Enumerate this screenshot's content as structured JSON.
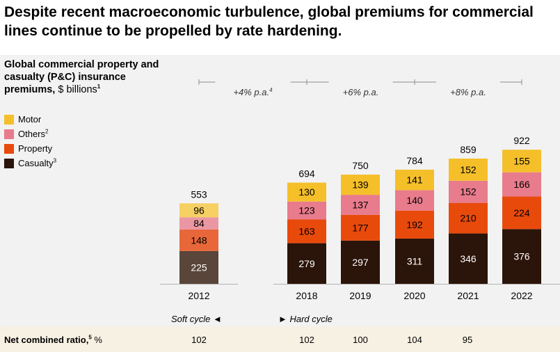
{
  "headline": "Despite recent macroeconomic turbulence, global premiums for commercial lines continue to be propelled by rate hardening.",
  "subtitle": {
    "text": "Global commercial property and casualty (P&C) insurance premiums,",
    "unit": " $ billions",
    "footnote": "1"
  },
  "legend": [
    {
      "name": "Motor",
      "footnote": "",
      "color": "#f5bf2a"
    },
    {
      "name": "Others",
      "footnote": "2",
      "color": "#e87b8c"
    },
    {
      "name": "Property",
      "footnote": "",
      "color": "#e84a0c"
    },
    {
      "name": "Casualty",
      "footnote": "3",
      "color": "#2b1409"
    }
  ],
  "chart_data": {
    "type": "bar",
    "stacked": true,
    "categories": [
      "2012",
      "2018",
      "2019",
      "2020",
      "2021",
      "2022"
    ],
    "series": [
      {
        "name": "Casualty",
        "values": [
          225,
          279,
          297,
          311,
          346,
          376
        ]
      },
      {
        "name": "Property",
        "values": [
          148,
          163,
          177,
          192,
          210,
          224
        ]
      },
      {
        "name": "Others",
        "values": [
          84,
          123,
          137,
          140,
          152,
          166
        ]
      },
      {
        "name": "Motor",
        "values": [
          96,
          130,
          139,
          141,
          152,
          155
        ]
      }
    ],
    "totals": [
      553,
      694,
      750,
      784,
      859,
      922
    ],
    "colors": {
      "Casualty": "#2b1409",
      "Property": "#e84a0c",
      "Others": "#e87b8c",
      "Motor": "#f5bf2a"
    },
    "muted_colors": {
      "Casualty": "#594539",
      "Property": "#e8673a",
      "Others": "#eb97a3",
      "Motor": "#f7d064"
    },
    "muted_categories": [
      "2012"
    ],
    "growth_annotations": [
      {
        "label": "+4% p.a.",
        "footnote": "4",
        "from": "2012",
        "to": "2018"
      },
      {
        "label": "+6% p.a.",
        "footnote": "",
        "from": "2018",
        "to": "2020"
      },
      {
        "label": "+8% p.a.",
        "footnote": "",
        "from": "2020",
        "to": "2022"
      }
    ]
  },
  "cycles": {
    "soft": "Soft cycle ◄",
    "hard": "► Hard cycle"
  },
  "ratio": {
    "label": "Net combined ratio,",
    "footnote": "5",
    "unit": " %",
    "values": [
      "102",
      "102",
      "100",
      "104",
      "95",
      ""
    ]
  }
}
